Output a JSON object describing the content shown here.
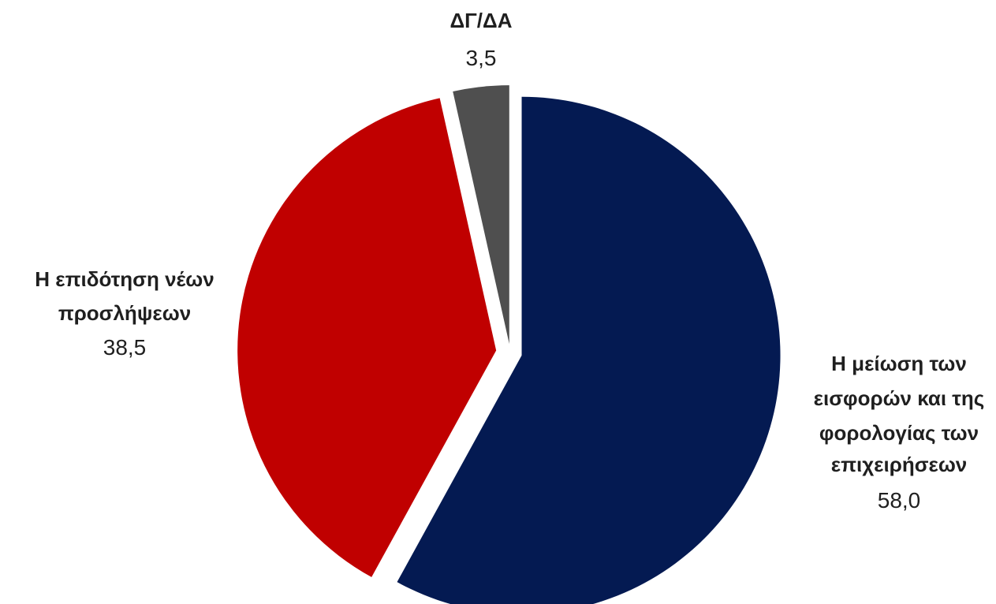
{
  "chart_data": {
    "type": "pie",
    "title": "",
    "categories": [
      "Η μείωση των εισφορών και της φορολογίας των επιχειρήσεων",
      "Η επιδότηση νέων προσλήψεων",
      "ΔΓ/ΔΑ"
    ],
    "values": [
      58.0,
      38.5,
      3.5
    ],
    "value_labels": [
      "58,0",
      "38,5",
      "3,5"
    ],
    "label_lines": [
      [
        "Η μείωση των",
        "εισφορών και της",
        "φορολογίας των",
        "επιχειρήσεων"
      ],
      [
        "Η επιδότηση νέων",
        "προσλήψεων"
      ],
      [
        "ΔΓ/ΔΑ"
      ]
    ],
    "colors": [
      "#041A52",
      "#C00000",
      "#4F4F4F"
    ],
    "start": "12 o'clock",
    "direction": "clockwise",
    "exploded": true,
    "legend": "none"
  }
}
